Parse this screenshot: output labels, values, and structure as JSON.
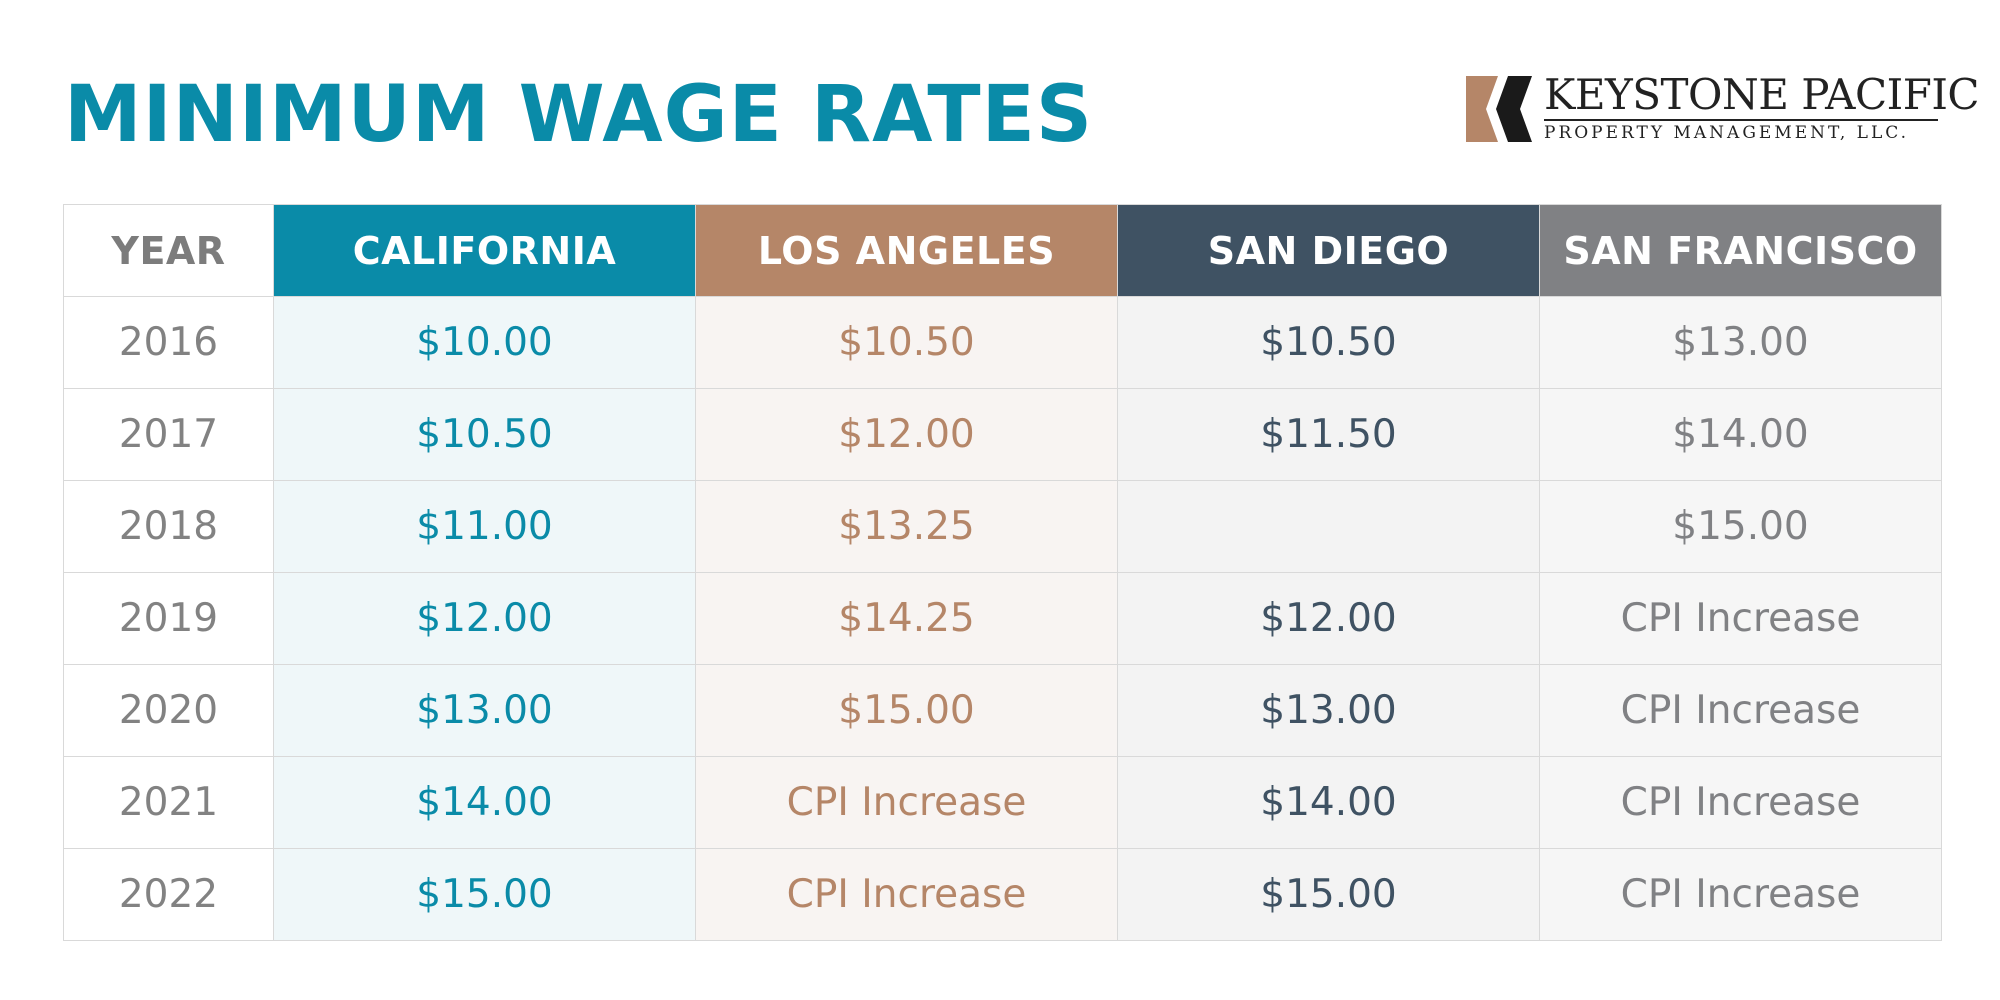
{
  "title": "MINIMUM WAGE RATES",
  "logo": {
    "name": "KEYSTONE PACIFIC",
    "subtitle": "PROPERTY MANAGEMENT, LLC.",
    "colors": {
      "accent": "#b58668",
      "dark": "#222222"
    }
  },
  "colors": {
    "title": "#0a8ba8",
    "california": "#0a8ba8",
    "los_angeles": "#b58668",
    "san_diego": "#3f5263",
    "san_francisco": "#808184"
  },
  "chart_data": {
    "type": "table",
    "columns": [
      "YEAR",
      "CALIFORNIA",
      "LOS ANGELES",
      "SAN DIEGO",
      "SAN FRANCISCO"
    ],
    "rows": [
      [
        "2016",
        "$10.00",
        "$10.50",
        "$10.50",
        "$13.00"
      ],
      [
        "2017",
        "$10.50",
        "$12.00",
        "$11.50",
        "$14.00"
      ],
      [
        "2018",
        "$11.00",
        "$13.25",
        "",
        "$15.00"
      ],
      [
        "2019",
        "$12.00",
        "$14.25",
        "$12.00",
        "CPI Increase"
      ],
      [
        "2020",
        "$13.00",
        "$15.00",
        "$13.00",
        "CPI Increase"
      ],
      [
        "2021",
        "$14.00",
        "CPI Increase",
        "$14.00",
        "CPI Increase"
      ],
      [
        "2022",
        "$15.00",
        "CPI Increase",
        "$15.00",
        "CPI Increase"
      ]
    ]
  }
}
